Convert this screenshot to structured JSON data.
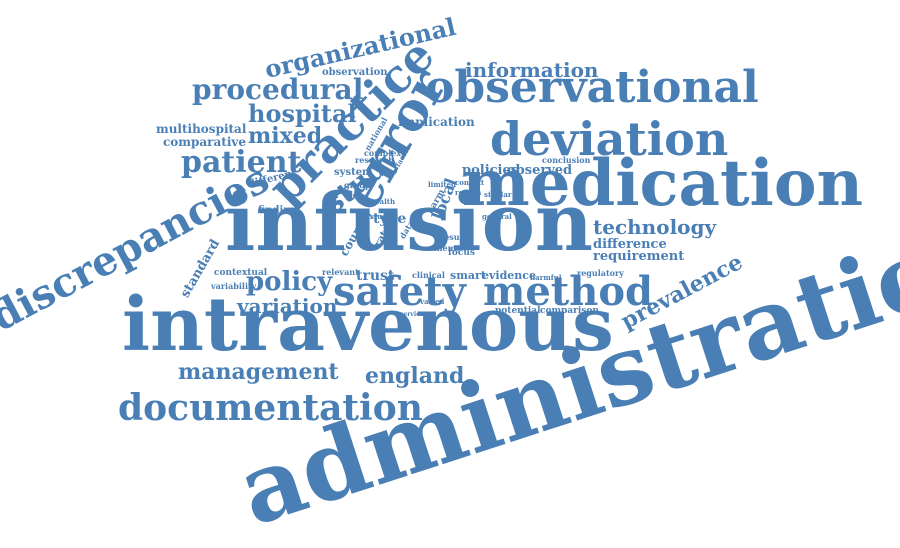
{
  "colors": {
    "word": "#4a7fb5",
    "background": "#ffffff"
  },
  "words": [
    {
      "text": "administration"
    },
    {
      "text": "intravenous"
    },
    {
      "text": "infusion"
    },
    {
      "text": "medication"
    },
    {
      "text": "error"
    },
    {
      "text": "practice"
    },
    {
      "text": "discrepancies"
    },
    {
      "text": "observational"
    },
    {
      "text": "deviation"
    },
    {
      "text": "safety"
    },
    {
      "text": "method"
    },
    {
      "text": "documentation"
    },
    {
      "text": "organizational"
    },
    {
      "text": "procedural"
    },
    {
      "text": "information"
    },
    {
      "text": "hospital"
    },
    {
      "text": "patient"
    },
    {
      "text": "mixed"
    },
    {
      "text": "study"
    },
    {
      "text": "policy"
    },
    {
      "text": "management"
    },
    {
      "text": "england"
    },
    {
      "text": "technology"
    },
    {
      "text": "prevalence"
    },
    {
      "text": "variation"
    },
    {
      "text": "policies"
    },
    {
      "text": "observed"
    },
    {
      "text": "difference"
    },
    {
      "text": "requirement"
    },
    {
      "text": "multihospital"
    },
    {
      "text": "comparative"
    },
    {
      "text": "trust"
    },
    {
      "text": "standard"
    },
    {
      "text": "implication"
    },
    {
      "text": "observation"
    },
    {
      "text": "smart"
    },
    {
      "text": "evidence"
    },
    {
      "text": "potential"
    },
    {
      "text": "comparison"
    },
    {
      "text": "contextual"
    },
    {
      "text": "variability"
    },
    {
      "text": "relevant"
    },
    {
      "text": "finding"
    },
    {
      "text": "different"
    },
    {
      "text": "system"
    },
    {
      "text": "conclusion"
    },
    {
      "text": "regulatory"
    },
    {
      "text": "harmful"
    },
    {
      "text": "clinical"
    },
    {
      "text": "group"
    },
    {
      "text": "research"
    },
    {
      "text": "complex"
    },
    {
      "text": "national"
    },
    {
      "text": "type"
    },
    {
      "text": "country"
    },
    {
      "text": "rate"
    },
    {
      "text": "local"
    },
    {
      "text": "limited"
    },
    {
      "text": "context"
    },
    {
      "text": "reason"
    },
    {
      "text": "general"
    },
    {
      "text": "focus"
    },
    {
      "text": "theme"
    },
    {
      "text": "result"
    },
    {
      "text": "harm"
    },
    {
      "text": "data"
    },
    {
      "text": "studies"
    },
    {
      "text": "similar"
    },
    {
      "text": "varied"
    },
    {
      "text": "service"
    },
    {
      "text": "factor"
    },
    {
      "text": "health"
    }
  ]
}
